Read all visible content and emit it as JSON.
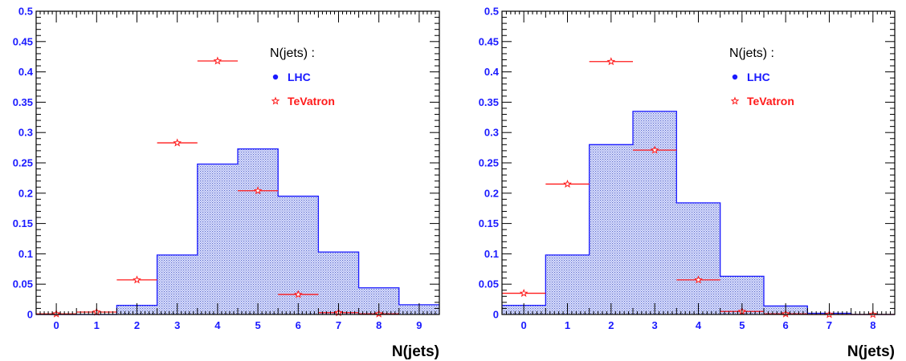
{
  "chart_data": [
    {
      "type": "bar",
      "xlabel": "N(jets)",
      "ylabel": "",
      "xlim": [
        -0.5,
        9.5
      ],
      "ylim": [
        0,
        0.5
      ],
      "x_ticks": [
        "0",
        "1",
        "2",
        "3",
        "4",
        "5",
        "6",
        "7",
        "8",
        "9"
      ],
      "y_ticks": [
        "0",
        "0.05",
        "0.1",
        "0.15",
        "0.2",
        "0.25",
        "0.3",
        "0.35",
        "0.4",
        "0.45",
        "0.5"
      ],
      "legend": {
        "title": "N(jets) :",
        "placement": "top-right"
      },
      "series": [
        {
          "name": "LHC",
          "style": "histogram",
          "x": [
            0,
            1,
            2,
            3,
            4,
            5,
            6,
            7,
            8,
            9
          ],
          "values": [
            0.0,
            0.0,
            0.015,
            0.098,
            0.248,
            0.273,
            0.195,
            0.103,
            0.044,
            0.016
          ],
          "color": "#1a1aff"
        },
        {
          "name": "TeVatron",
          "style": "points",
          "x": [
            0,
            1,
            2,
            3,
            4,
            5,
            6,
            7,
            8
          ],
          "values": [
            0.001,
            0.004,
            0.057,
            0.283,
            0.418,
            0.204,
            0.033,
            0.003,
            0.001
          ],
          "color": "#ff1a1a"
        }
      ]
    },
    {
      "type": "bar",
      "xlabel": "N(jets)",
      "ylabel": "",
      "xlim": [
        -0.5,
        8.5
      ],
      "ylim": [
        0,
        0.5
      ],
      "x_ticks": [
        "0",
        "1",
        "2",
        "3",
        "4",
        "5",
        "6",
        "7",
        "8"
      ],
      "y_ticks": [
        "0",
        "0.05",
        "0.1",
        "0.15",
        "0.2",
        "0.25",
        "0.3",
        "0.35",
        "0.4",
        "0.45",
        "0.5"
      ],
      "legend": {
        "title": "N(jets) :",
        "placement": "top-right"
      },
      "series": [
        {
          "name": "LHC",
          "style": "histogram",
          "x": [
            0,
            1,
            2,
            3,
            4,
            5,
            6,
            7,
            8
          ],
          "values": [
            0.015,
            0.098,
            0.28,
            0.335,
            0.184,
            0.063,
            0.014,
            0.002,
            0.0
          ],
          "color": "#1a1aff"
        },
        {
          "name": "TeVatron",
          "style": "points",
          "x": [
            0,
            1,
            2,
            3,
            4,
            5,
            6,
            7,
            8
          ],
          "values": [
            0.035,
            0.215,
            0.417,
            0.271,
            0.057,
            0.005,
            0.001,
            0.0,
            0.0
          ],
          "color": "#ff1a1a"
        }
      ]
    }
  ]
}
